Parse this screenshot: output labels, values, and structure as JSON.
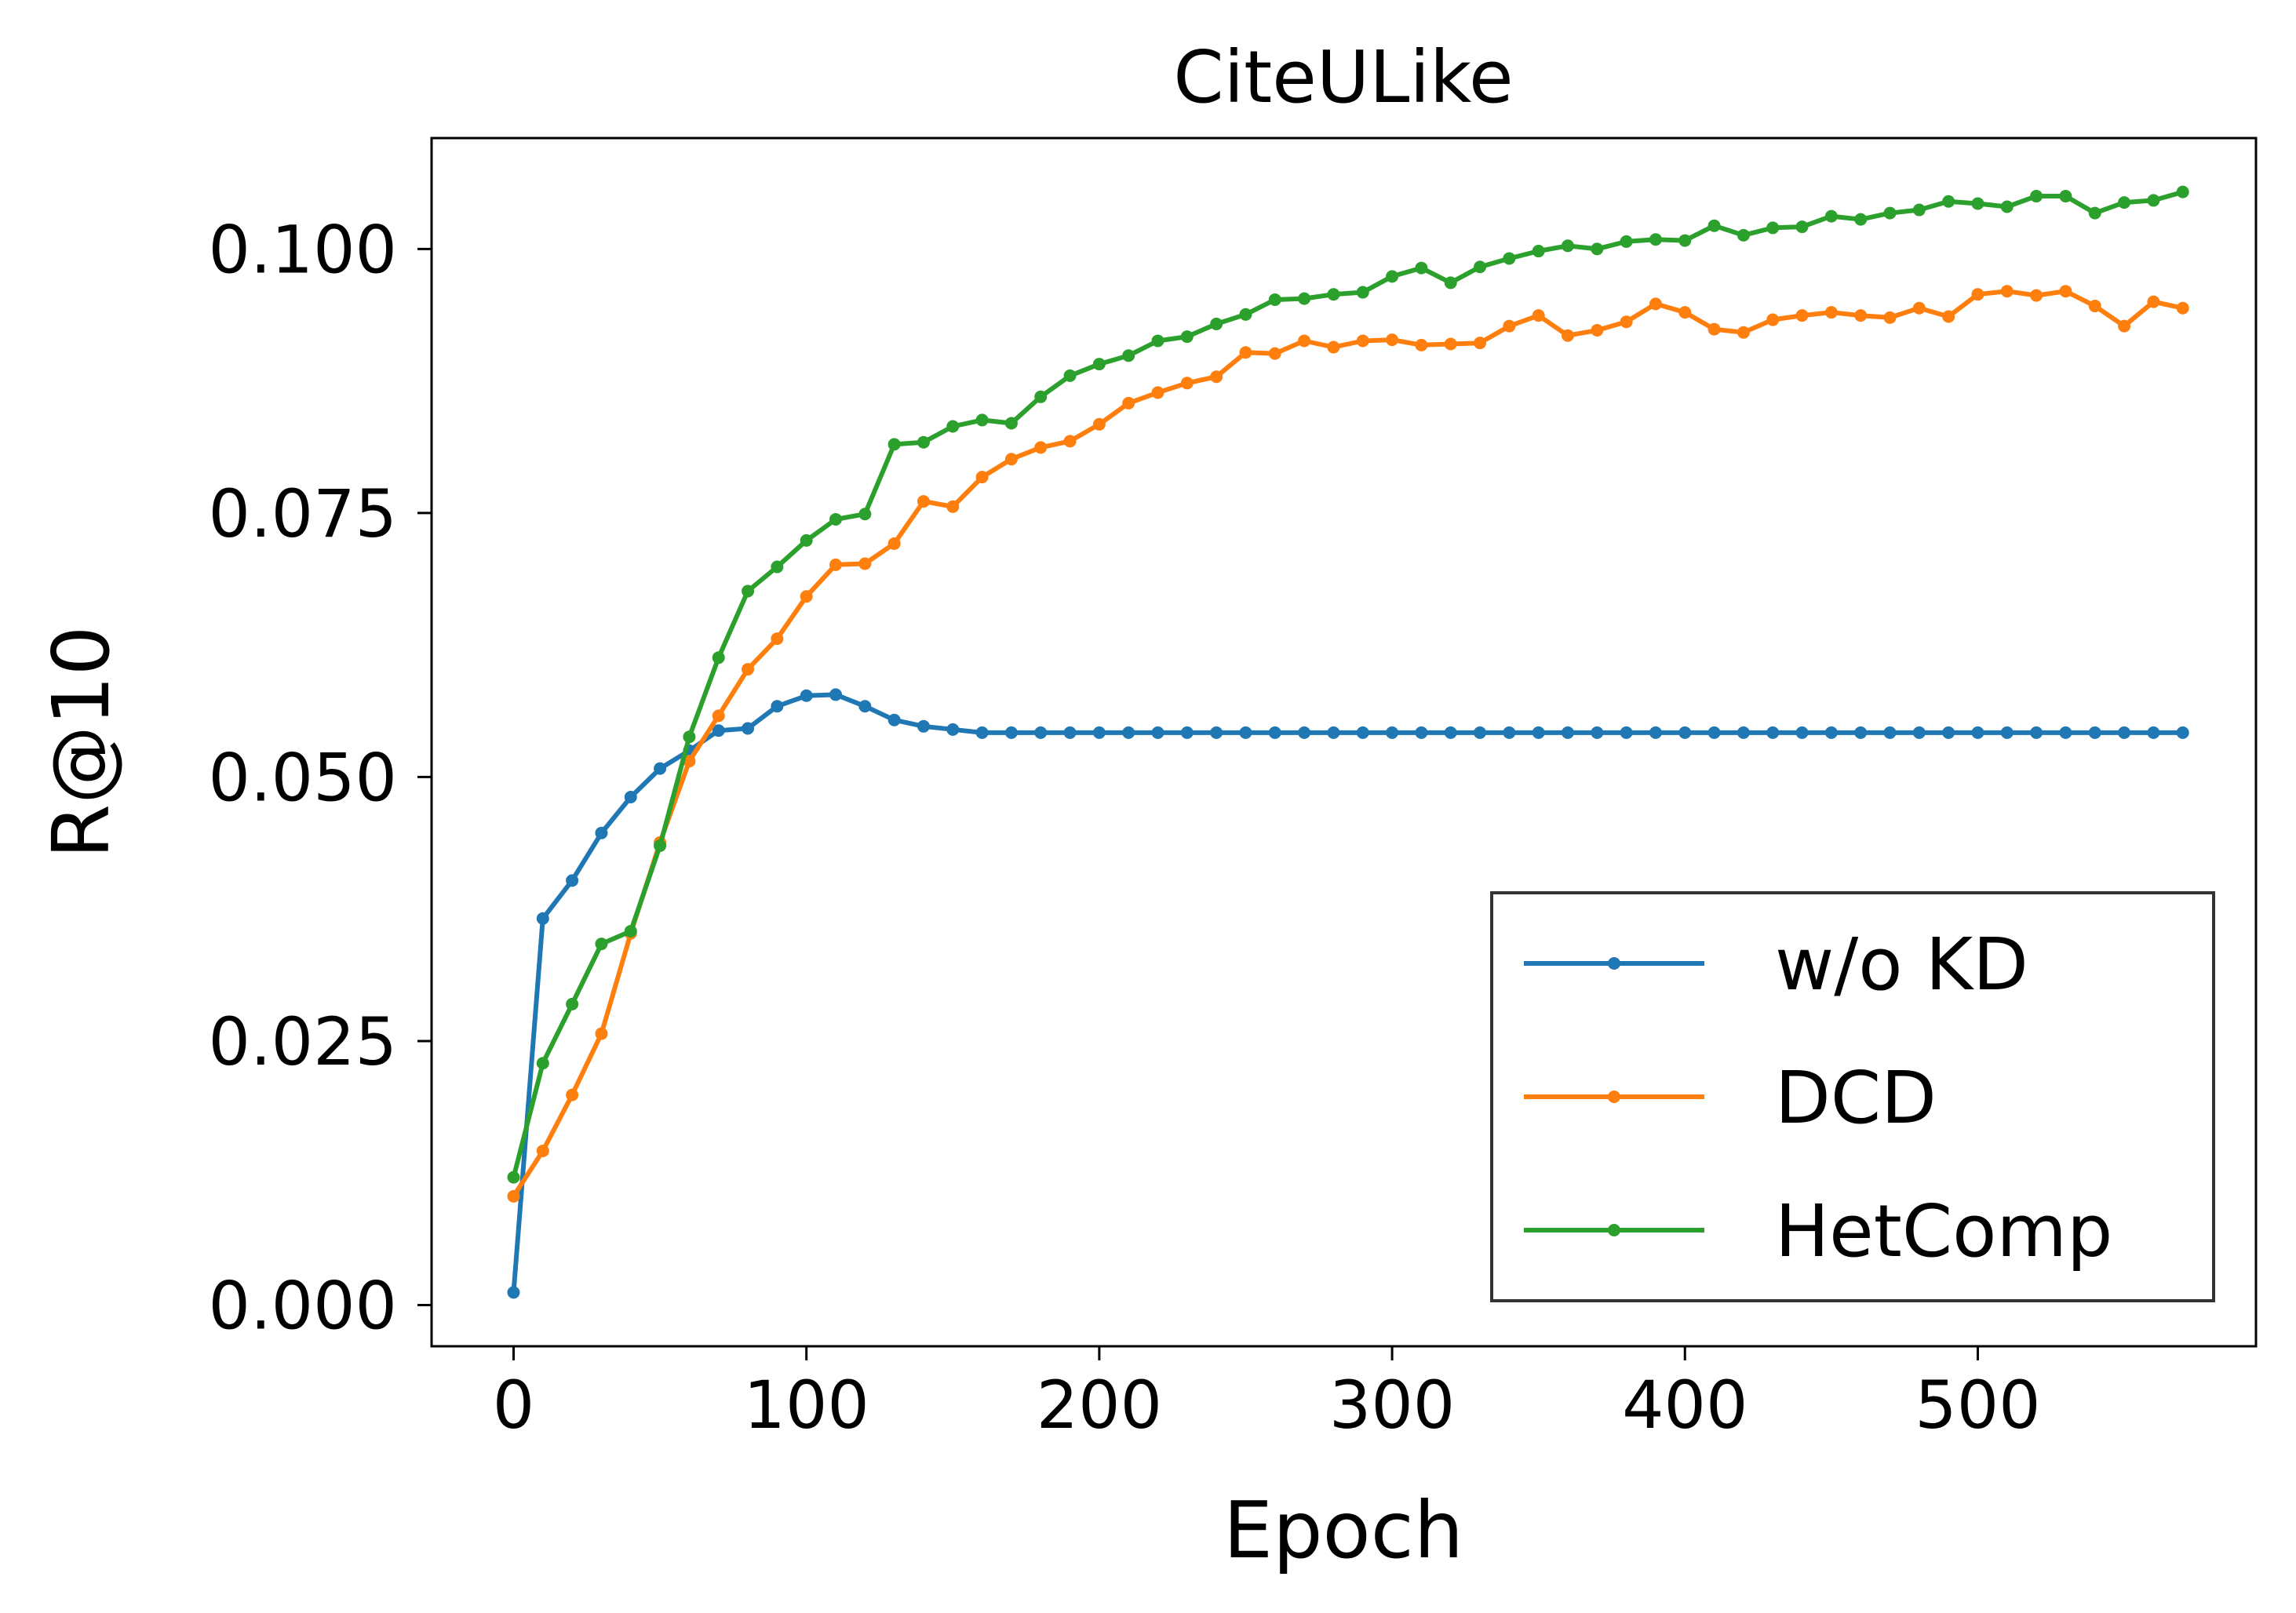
{
  "chart_data": {
    "type": "line",
    "title": "CiteULike",
    "xlabel": "Epoch",
    "ylabel": "R@10",
    "xlim": [
      -28,
      595
    ],
    "ylim": [
      -0.0039,
      0.1105
    ],
    "xticks": [
      0,
      100,
      200,
      300,
      400,
      500
    ],
    "yticks": [
      0.0,
      0.025,
      0.05,
      0.075,
      0.1
    ],
    "ytick_labels": [
      "0.000",
      "0.025",
      "0.050",
      "0.075",
      "0.100"
    ],
    "grid": false,
    "legend_position": "lower-right",
    "x": [
      0,
      10,
      20,
      30,
      40,
      50,
      60,
      70,
      80,
      90,
      100,
      110,
      120,
      130,
      140,
      150,
      160,
      170,
      180,
      190,
      200,
      210,
      220,
      230,
      240,
      250,
      260,
      270,
      280,
      290,
      300,
      310,
      320,
      330,
      340,
      350,
      360,
      370,
      380,
      390,
      400,
      410,
      420,
      430,
      440,
      450,
      460,
      470,
      480,
      490,
      500,
      510,
      520,
      530,
      540,
      550,
      560,
      570
    ],
    "series": [
      {
        "name": "w/o KD",
        "color": "#1f77b4",
        "values": [
          0.0012,
          0.0366,
          0.0402,
          0.0447,
          0.0481,
          0.0508,
          0.0525,
          0.0544,
          0.0546,
          0.0567,
          0.0577,
          0.0578,
          0.0567,
          0.0554,
          0.0548,
          0.0545,
          0.0542,
          0.0542,
          0.0542,
          0.0542,
          0.0542,
          0.0542,
          0.0542,
          0.0542,
          0.0542,
          0.0542,
          0.0542,
          0.0542,
          0.0542,
          0.0542,
          0.0542,
          0.0542,
          0.0542,
          0.0542,
          0.0542,
          0.0542,
          0.0542,
          0.0542,
          0.0542,
          0.0542,
          0.0542,
          0.0542,
          0.0542,
          0.0542,
          0.0542,
          0.0542,
          0.0542,
          0.0542,
          0.0542,
          0.0542,
          0.0542,
          0.0542,
          0.0542,
          0.0542,
          0.0542,
          0.0542,
          0.0542,
          0.0542
        ]
      },
      {
        "name": "DCD",
        "color": "#ff7f0e",
        "values": [
          0.0103,
          0.0146,
          0.0199,
          0.0257,
          0.0352,
          0.0438,
          0.0515,
          0.0558,
          0.0602,
          0.0631,
          0.0671,
          0.0701,
          0.0702,
          0.0721,
          0.0761,
          0.0756,
          0.0784,
          0.0801,
          0.0812,
          0.0818,
          0.0834,
          0.0854,
          0.0864,
          0.0873,
          0.0879,
          0.0902,
          0.0901,
          0.0913,
          0.0907,
          0.0913,
          0.0914,
          0.0909,
          0.091,
          0.0911,
          0.0927,
          0.0937,
          0.0918,
          0.0923,
          0.0931,
          0.0948,
          0.094,
          0.0924,
          0.0921,
          0.0933,
          0.0937,
          0.094,
          0.0937,
          0.0935,
          0.0944,
          0.0936,
          0.0957,
          0.096,
          0.0956,
          0.096,
          0.0946,
          0.0927,
          0.095,
          0.0944
        ]
      },
      {
        "name": "HetComp",
        "color": "#2ca02c",
        "values": [
          0.0121,
          0.0229,
          0.0285,
          0.0342,
          0.0354,
          0.0435,
          0.0538,
          0.0613,
          0.0676,
          0.0699,
          0.0724,
          0.0744,
          0.0749,
          0.0815,
          0.0817,
          0.0832,
          0.0838,
          0.0835,
          0.086,
          0.088,
          0.0891,
          0.0899,
          0.0913,
          0.0917,
          0.0929,
          0.0938,
          0.0952,
          0.0953,
          0.0957,
          0.0959,
          0.0974,
          0.0982,
          0.0968,
          0.0983,
          0.0991,
          0.0998,
          0.1003,
          0.1,
          0.1007,
          0.1009,
          0.1008,
          0.1022,
          0.1013,
          0.102,
          0.1021,
          0.1031,
          0.1028,
          0.1034,
          0.1037,
          0.1045,
          0.1043,
          0.104,
          0.105,
          0.105,
          0.1034,
          0.1044,
          0.1046,
          0.1054
        ]
      }
    ]
  }
}
